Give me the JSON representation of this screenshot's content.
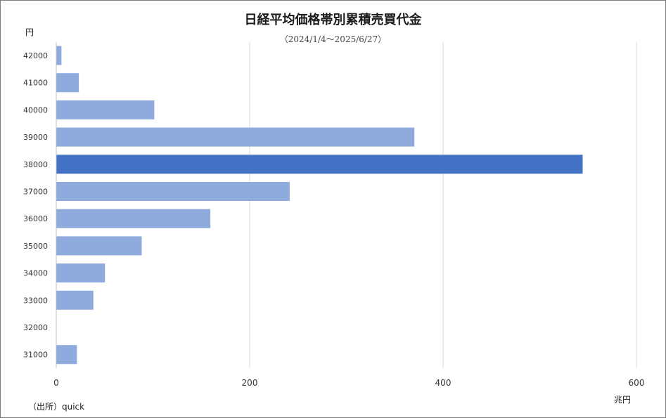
{
  "chart_data": {
    "type": "bar",
    "orientation": "horizontal",
    "title": "日経平均価格帯別累積売買代金",
    "subtitle": "（2024/1/4～2025/6/27）",
    "ylabel": "円",
    "xlabel": "兆円",
    "source": "（出所）quick",
    "categories": [
      "42000",
      "41000",
      "40000",
      "39000",
      "38000",
      "37000",
      "36000",
      "35000",
      "34000",
      "33000",
      "32000",
      "31000"
    ],
    "values": [
      5,
      23,
      101,
      370,
      544,
      241,
      159,
      88,
      50,
      38,
      0,
      21
    ],
    "highlight_index": 4,
    "xlim": [
      0,
      600
    ],
    "xticks": [
      "0",
      "200",
      "400",
      "600"
    ],
    "grid": true,
    "colors": {
      "bar": "#8faadc",
      "highlight": "#4472c4",
      "grid": "#d9d9d9"
    }
  }
}
